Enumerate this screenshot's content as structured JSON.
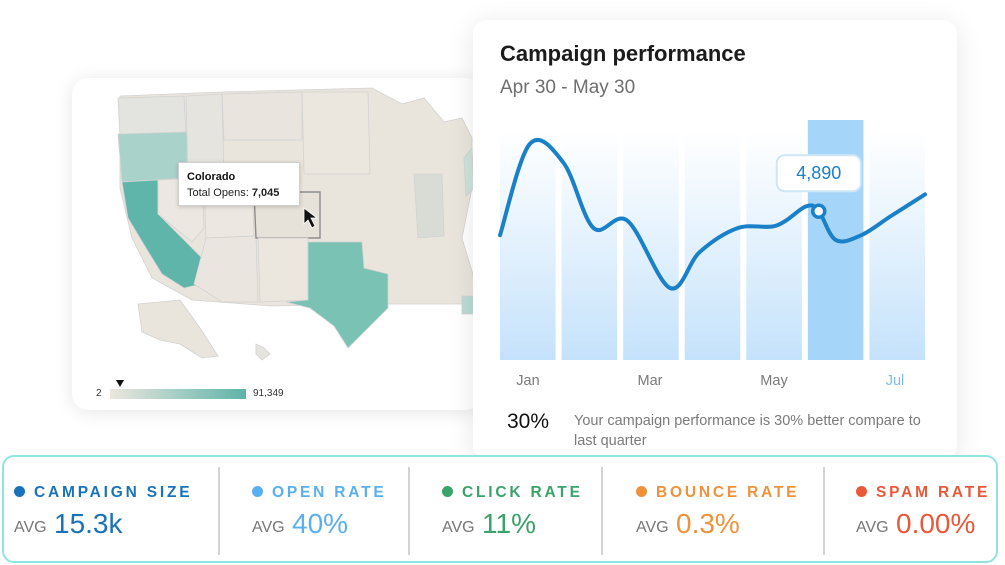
{
  "map": {
    "tooltip": {
      "title": "Colorado",
      "label": "Total Opens:",
      "value": "7,045"
    },
    "legend": {
      "min": "2",
      "max": "91,349"
    }
  },
  "performance": {
    "title": "Campaign performance",
    "subtitle": "Apr 30 - May 30",
    "highlight_value": "4,890",
    "summary_pct": "30%",
    "summary_text": "Your campaign performance is 30% better compare to last quarter",
    "accent_color": "#1a80c8"
  },
  "chart_data": {
    "type": "line",
    "categories": [
      "Jan",
      "Mar",
      "May",
      "Jul"
    ],
    "bars": 7,
    "highlight_bar": 5,
    "series": [
      {
        "x": [
          0,
          0.07,
          0.15,
          0.22,
          0.3,
          0.4,
          0.47,
          0.56,
          0.65,
          0.72,
          0.75,
          0.79,
          0.85,
          0.92,
          1.0
        ],
        "values": [
          0.52,
          0.9,
          0.82,
          0.55,
          0.58,
          0.3,
          0.45,
          0.55,
          0.56,
          0.64,
          0.62,
          0.5,
          0.52,
          0.6,
          0.69
        ]
      }
    ],
    "ylim": [
      0,
      1
    ],
    "annotation": {
      "label": "4,890",
      "x": 0.75,
      "y": 0.62
    },
    "colors": {
      "line": "#1a80c8",
      "bar": "#c6e3fb",
      "bar_highlight": "#a6d5fa"
    }
  },
  "stats": [
    {
      "label": "CAMPAIGN SIZE",
      "avg": "AVG",
      "value": "15.3k",
      "color": "#1a73b8"
    },
    {
      "label": "OPEN RATE",
      "avg": "AVG",
      "value": "40%",
      "color": "#5aaff0"
    },
    {
      "label": "CLICK RATE",
      "avg": "AVG",
      "value": "11%",
      "color": "#3aa36a"
    },
    {
      "label": "BOUNCE RATE",
      "avg": "AVG",
      "value": "0.3%",
      "color": "#f0923c"
    },
    {
      "label": "SPAM RATE",
      "avg": "AVG",
      "value": "0.00%",
      "color": "#e8583a"
    }
  ]
}
